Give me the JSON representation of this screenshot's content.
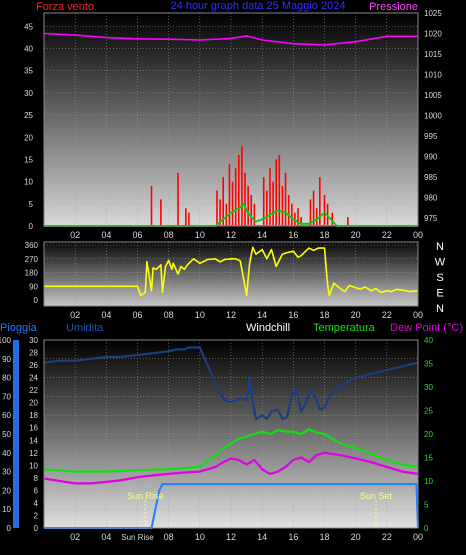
{
  "header": {
    "left_label": "Forza vento",
    "center_label": "24 hour graph data  25 Maggio 2024",
    "right_label": "Pressione"
  },
  "colors": {
    "wind": "#ff0000",
    "gust": "#00d000",
    "pressure": "#ff00ff",
    "direction": "#ffff00",
    "humidity": "#1a3e80",
    "temperature": "#10e010",
    "dewpoint": "#e000e0",
    "rain": "#1e7fff",
    "sun_marker": "#ffff80",
    "tick_text": "#d8d8d8"
  },
  "chart_data": [
    {
      "type": "line",
      "title": "24 hour graph data  25 Maggio 2024",
      "x_ticks": [
        "02",
        "04",
        "06",
        "08",
        "10",
        "12",
        "14",
        "16",
        "18",
        "20",
        "22",
        "00"
      ],
      "xlim": [
        0,
        24
      ],
      "ylabel": "Forza vento",
      "ylim": [
        0,
        48
      ],
      "yticks": [
        "0",
        "5",
        "10",
        "15",
        "20",
        "25",
        "30",
        "35",
        "40",
        "45"
      ],
      "y2label": "Pressione",
      "y2lim": [
        973,
        1025
      ],
      "y2ticks": [
        "975",
        "980",
        "985",
        "990",
        "995",
        "1000",
        "1005",
        "1010",
        "1015",
        "1020",
        "1025"
      ],
      "series": [
        {
          "key": "pressure",
          "axis": "right",
          "style": "line",
          "x": [
            0,
            2,
            4,
            6,
            8,
            10,
            12,
            13,
            14,
            16,
            18,
            20,
            22,
            24
          ],
          "y": [
            1020.0,
            1019.6,
            1019.0,
            1018.7,
            1018.6,
            1018.4,
            1018.8,
            1019.4,
            1018.4,
            1017.5,
            1017.2,
            1018.0,
            1019.3,
            1019.3
          ]
        },
        {
          "key": "wind",
          "axis": "left",
          "style": "bars",
          "x": [
            6.9,
            7.5,
            8.6,
            9.1,
            9.3,
            11.1,
            11.3,
            11.5,
            11.7,
            11.9,
            12.1,
            12.3,
            12.5,
            12.7,
            12.9,
            13.1,
            13.3,
            13.5,
            14.1,
            14.3,
            14.5,
            14.7,
            14.9,
            15.1,
            15.3,
            15.5,
            15.7,
            15.9,
            16.1,
            16.3,
            16.5,
            17.1,
            17.3,
            17.5,
            17.7,
            18.0,
            18.2,
            18.5,
            19.5
          ],
          "y": [
            9,
            6,
            12,
            4,
            3,
            8,
            6,
            11,
            5,
            14,
            10,
            13,
            16,
            18,
            12,
            9,
            7,
            5,
            11,
            8,
            13,
            10,
            15,
            16,
            9,
            12,
            7,
            5,
            3,
            4,
            2,
            6,
            8,
            4,
            11,
            7,
            5,
            3,
            2
          ]
        },
        {
          "key": "gust",
          "axis": "left",
          "style": "line",
          "x": [
            0,
            11.0,
            11.5,
            12.0,
            12.5,
            12.8,
            13.0,
            13.3,
            13.6,
            14.0,
            14.5,
            15.0,
            15.5,
            16.0,
            16.5,
            17.0,
            17.5,
            18.0,
            18.4,
            18.8,
            24
          ],
          "y": [
            0,
            0,
            1.5,
            3,
            4,
            5,
            3.5,
            2,
            1,
            1.5,
            2.5,
            3.5,
            3,
            1.5,
            0.5,
            0.5,
            1.5,
            3,
            1.5,
            0,
            0
          ]
        }
      ]
    },
    {
      "type": "line",
      "x_ticks": [
        "02",
        "04",
        "06",
        "08",
        "10",
        "12",
        "14",
        "16",
        "18",
        "20",
        "22",
        "00"
      ],
      "xlim": [
        0,
        24
      ],
      "ylim": [
        0,
        360
      ],
      "yticks": [
        "0",
        "90",
        "180",
        "270",
        "360"
      ],
      "right_labels": [
        "N",
        "W",
        "S",
        "E",
        "N"
      ],
      "series": [
        {
          "key": "direction",
          "style": "line",
          "x": [
            0,
            6.0,
            6.2,
            6.5,
            6.6,
            6.9,
            7.0,
            7.2,
            7.5,
            7.6,
            7.8,
            8.0,
            8.2,
            8.3,
            8.6,
            8.8,
            9.0,
            9.2,
            9.4,
            9.6,
            9.8,
            10.0,
            10.5,
            11.0,
            11.3,
            11.6,
            12.0,
            12.3,
            12.6,
            13.0,
            13.2,
            13.4,
            13.6,
            14.0,
            14.3,
            14.6,
            14.9,
            15.3,
            15.6,
            16.0,
            16.3,
            16.5,
            17.0,
            17.3,
            17.6,
            18.0,
            18.2,
            18.3,
            18.6,
            19.0,
            19.3,
            19.6,
            20.0,
            20.3,
            20.6,
            21.0,
            21.3,
            21.6,
            22.0,
            22.3,
            22.6,
            23.0,
            23.5,
            24
          ],
          "y": [
            90,
            90,
            30,
            50,
            250,
            60,
            210,
            200,
            230,
            50,
            220,
            260,
            200,
            240,
            170,
            220,
            200,
            230,
            250,
            270,
            255,
            240,
            265,
            270,
            250,
            265,
            270,
            270,
            255,
            30,
            245,
            345,
            300,
            330,
            270,
            330,
            220,
            300,
            310,
            320,
            280,
            290,
            340,
            325,
            340,
            340,
            100,
            30,
            110,
            75,
            55,
            95,
            80,
            70,
            85,
            60,
            75,
            50,
            60,
            55,
            70,
            65,
            55,
            60
          ]
        }
      ]
    },
    {
      "type": "line",
      "x_ticks": [
        "02",
        "04",
        "Sun Rise",
        "08",
        "10",
        "12",
        "14",
        "16",
        "18",
        "20",
        "22",
        "00"
      ],
      "xlim": [
        0,
        24
      ],
      "legend": [
        "Pioggia",
        "Umidita",
        "Windchill",
        "Temperatura",
        "Dew Point (°C)"
      ],
      "ylim": [
        0,
        100
      ],
      "yticks": [
        "0",
        "10",
        "20",
        "30",
        "40",
        "50",
        "60",
        "70",
        "80",
        "90",
        "100"
      ],
      "y_mid_ticks": [
        "0",
        "2",
        "4",
        "6",
        "8",
        "10",
        "12",
        "14",
        "16",
        "18",
        "20",
        "22",
        "24",
        "26",
        "28",
        "30"
      ],
      "y2lim": [
        0,
        40
      ],
      "y2ticks": [
        "0",
        "5",
        "10",
        "15",
        "20",
        "25",
        "30",
        "35",
        "40"
      ],
      "annotations": [
        {
          "label": "Sun Rise",
          "x": 6.5
        },
        {
          "label": "Sun Set",
          "x": 21.3
        }
      ],
      "series": [
        {
          "key": "humidity",
          "axis": "left",
          "style": "line",
          "x": [
            0,
            1,
            2,
            3,
            4,
            5,
            6,
            7,
            8,
            8.5,
            9,
            9.3,
            9.6,
            10.0,
            10.3,
            10.6,
            11.0,
            11.3,
            11.6,
            12.0,
            12.3,
            12.6,
            13.0,
            13.2,
            13.4,
            13.6,
            14.0,
            14.3,
            14.6,
            15.0,
            15.3,
            15.6,
            15.9,
            16.2,
            16.5,
            16.8,
            17.1,
            17.4,
            17.7,
            18.0,
            18.3,
            18.6,
            19.0,
            19.5,
            20.0,
            21.0,
            22.0,
            23.0,
            24
          ],
          "y": [
            88,
            89,
            89,
            90,
            91,
            91,
            92,
            93,
            94,
            95,
            95,
            96,
            96,
            96,
            90,
            85,
            76,
            72,
            68,
            67,
            68,
            69,
            68,
            80,
            67,
            58,
            60,
            58,
            62,
            63,
            58,
            59,
            70,
            74,
            62,
            66,
            74,
            70,
            63,
            64,
            70,
            72,
            75,
            78,
            80,
            82,
            84,
            86,
            88
          ]
        },
        {
          "key": "temperature",
          "axis": "right",
          "style": "line",
          "x": [
            0,
            2,
            4,
            6,
            8,
            10,
            11,
            11.5,
            12,
            12.5,
            13,
            13.5,
            14,
            14.5,
            15,
            15.5,
            16,
            16.5,
            17,
            17.5,
            18,
            18.5,
            19,
            20,
            21,
            22,
            23,
            24
          ],
          "y": [
            12.5,
            12.0,
            12.0,
            12.3,
            12.5,
            13.0,
            15.5,
            17.0,
            18.0,
            19.0,
            19.5,
            20.0,
            20.5,
            20.0,
            20.8,
            20.5,
            20.5,
            20.0,
            21.0,
            20.3,
            20.0,
            19.0,
            18.0,
            17.0,
            15.8,
            14.5,
            13.5,
            13.0
          ]
        },
        {
          "key": "dewpoint",
          "axis": "right",
          "style": "line",
          "x": [
            0,
            1,
            2,
            3,
            4,
            5,
            6,
            7,
            8,
            9,
            10,
            11,
            11.5,
            12,
            12.5,
            13,
            13.5,
            14,
            14.5,
            15,
            15.5,
            16,
            16.5,
            17,
            17.5,
            18,
            19,
            20,
            21,
            22,
            23,
            24
          ],
          "y": [
            10.5,
            10.0,
            9.5,
            9.5,
            9.8,
            10.2,
            10.8,
            11.2,
            11.5,
            11.8,
            12.0,
            13.0,
            14.0,
            14.8,
            14.5,
            13.5,
            14.5,
            12.5,
            11.5,
            12.0,
            13.0,
            14.5,
            15.0,
            14.0,
            15.5,
            16.0,
            15.5,
            14.8,
            14.0,
            13.0,
            12.0,
            11.5
          ]
        },
        {
          "key": "rain",
          "axis": "mid",
          "ylim": [
            0,
            30
          ],
          "style": "step",
          "x": [
            0,
            6.9,
            7.4,
            7.6,
            23.9,
            24
          ],
          "y": [
            0,
            0,
            6,
            7,
            7,
            0
          ]
        }
      ]
    }
  ]
}
